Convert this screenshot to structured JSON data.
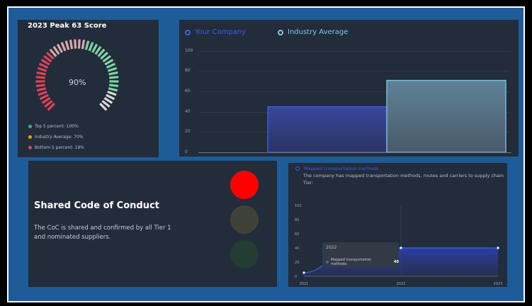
{
  "gauge": {
    "title": "2023 Peak 63 Score",
    "percent_label": "90%",
    "value_fraction": 0.9,
    "legend": [
      {
        "label": "Top 5 percent: 100%",
        "color": "#3fb57c"
      },
      {
        "label": "Industry Average: 70%",
        "color": "#e0a020"
      },
      {
        "label": "Bottom 5 percent: 19%",
        "color": "#e0435a"
      }
    ]
  },
  "bar_chart": {
    "legend": [
      {
        "label": "Your Company",
        "color": "#3f5de8"
      },
      {
        "label": "Industry Average",
        "color": "#7ec8ea"
      }
    ],
    "chart_data": {
      "type": "bar",
      "categories": [
        "Your Company",
        "Industry Average"
      ],
      "values": [
        45,
        71
      ],
      "ylim": [
        0,
        100
      ],
      "yticks": [
        "100",
        "80",
        "60",
        "40",
        "20",
        "0"
      ],
      "grid": true,
      "legend_position": "top-left"
    }
  },
  "code_of_conduct": {
    "title": "Shared Code of Conduct",
    "description": "The CoC is shared and confirmed by all Tier 1 and nominated suppliers.",
    "lights": [
      {
        "state": "red",
        "color": "#ff0000"
      },
      {
        "state": "amber",
        "color": "#3f4236"
      },
      {
        "state": "green",
        "color": "#233d32"
      }
    ]
  },
  "line_chart": {
    "series_title": "Mapped transportation methods",
    "description": "The company has mapped transportation methods, routes and carriers to supply chain Tier:",
    "tooltip": {
      "year": "2022",
      "label": "Mapped transportation methods:",
      "value": "40"
    },
    "chart_data": {
      "type": "area",
      "x": [
        "2021",
        "2022",
        "2023"
      ],
      "series": [
        {
          "name": "Mapped transportation methods",
          "values": [
            5,
            40,
            40
          ]
        }
      ],
      "ylim": [
        0,
        100
      ],
      "yticks": [
        "100",
        "80",
        "60",
        "40",
        "20",
        "0"
      ],
      "grid": false
    }
  }
}
